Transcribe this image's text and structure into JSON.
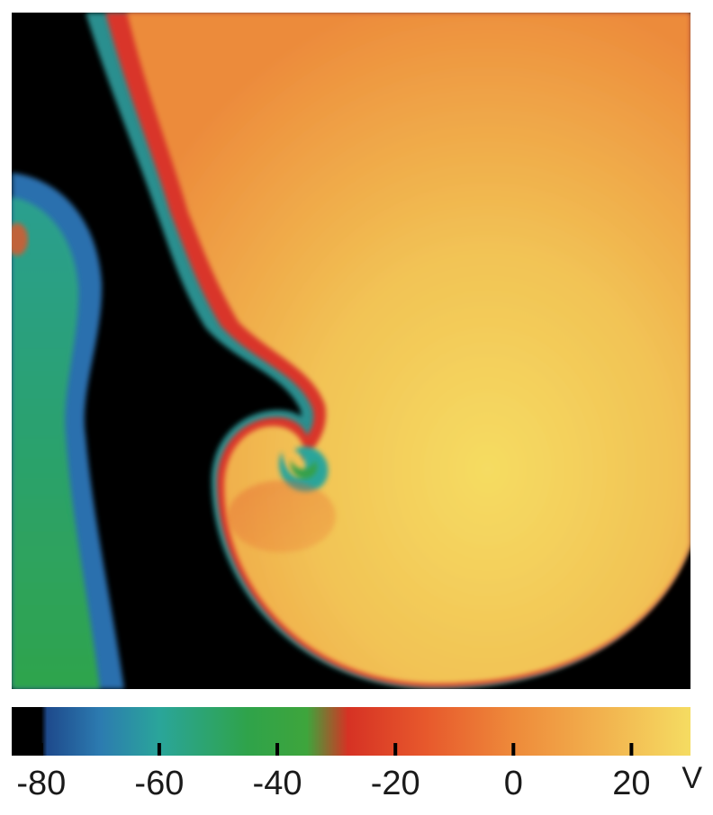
{
  "colorbar": {
    "unit": "V",
    "ticks": [
      -80,
      -60,
      -40,
      -20,
      0,
      20
    ],
    "range": [
      -85,
      30
    ],
    "stops": [
      {
        "value": -80,
        "color": "#000000"
      },
      {
        "value": -79,
        "color": "#1e4a8c"
      },
      {
        "value": -70,
        "color": "#2c7bb0"
      },
      {
        "value": -60,
        "color": "#2aa59a"
      },
      {
        "value": -45,
        "color": "#2fa34a"
      },
      {
        "value": -35,
        "color": "#3ea53c"
      },
      {
        "value": -28,
        "color": "#d63224"
      },
      {
        "value": -15,
        "color": "#e7582c"
      },
      {
        "value": 0,
        "color": "#ee8a3a"
      },
      {
        "value": 15,
        "color": "#f2b24e"
      },
      {
        "value": 30,
        "color": "#f5dc62"
      }
    ]
  },
  "colors": {
    "resting": "#000000",
    "blue": "#2c6fae",
    "teal": "#2a9f95",
    "green": "#34a048",
    "red": "#d9342a",
    "orange": "#ee8a3a",
    "yellow": "#f4d35e"
  }
}
